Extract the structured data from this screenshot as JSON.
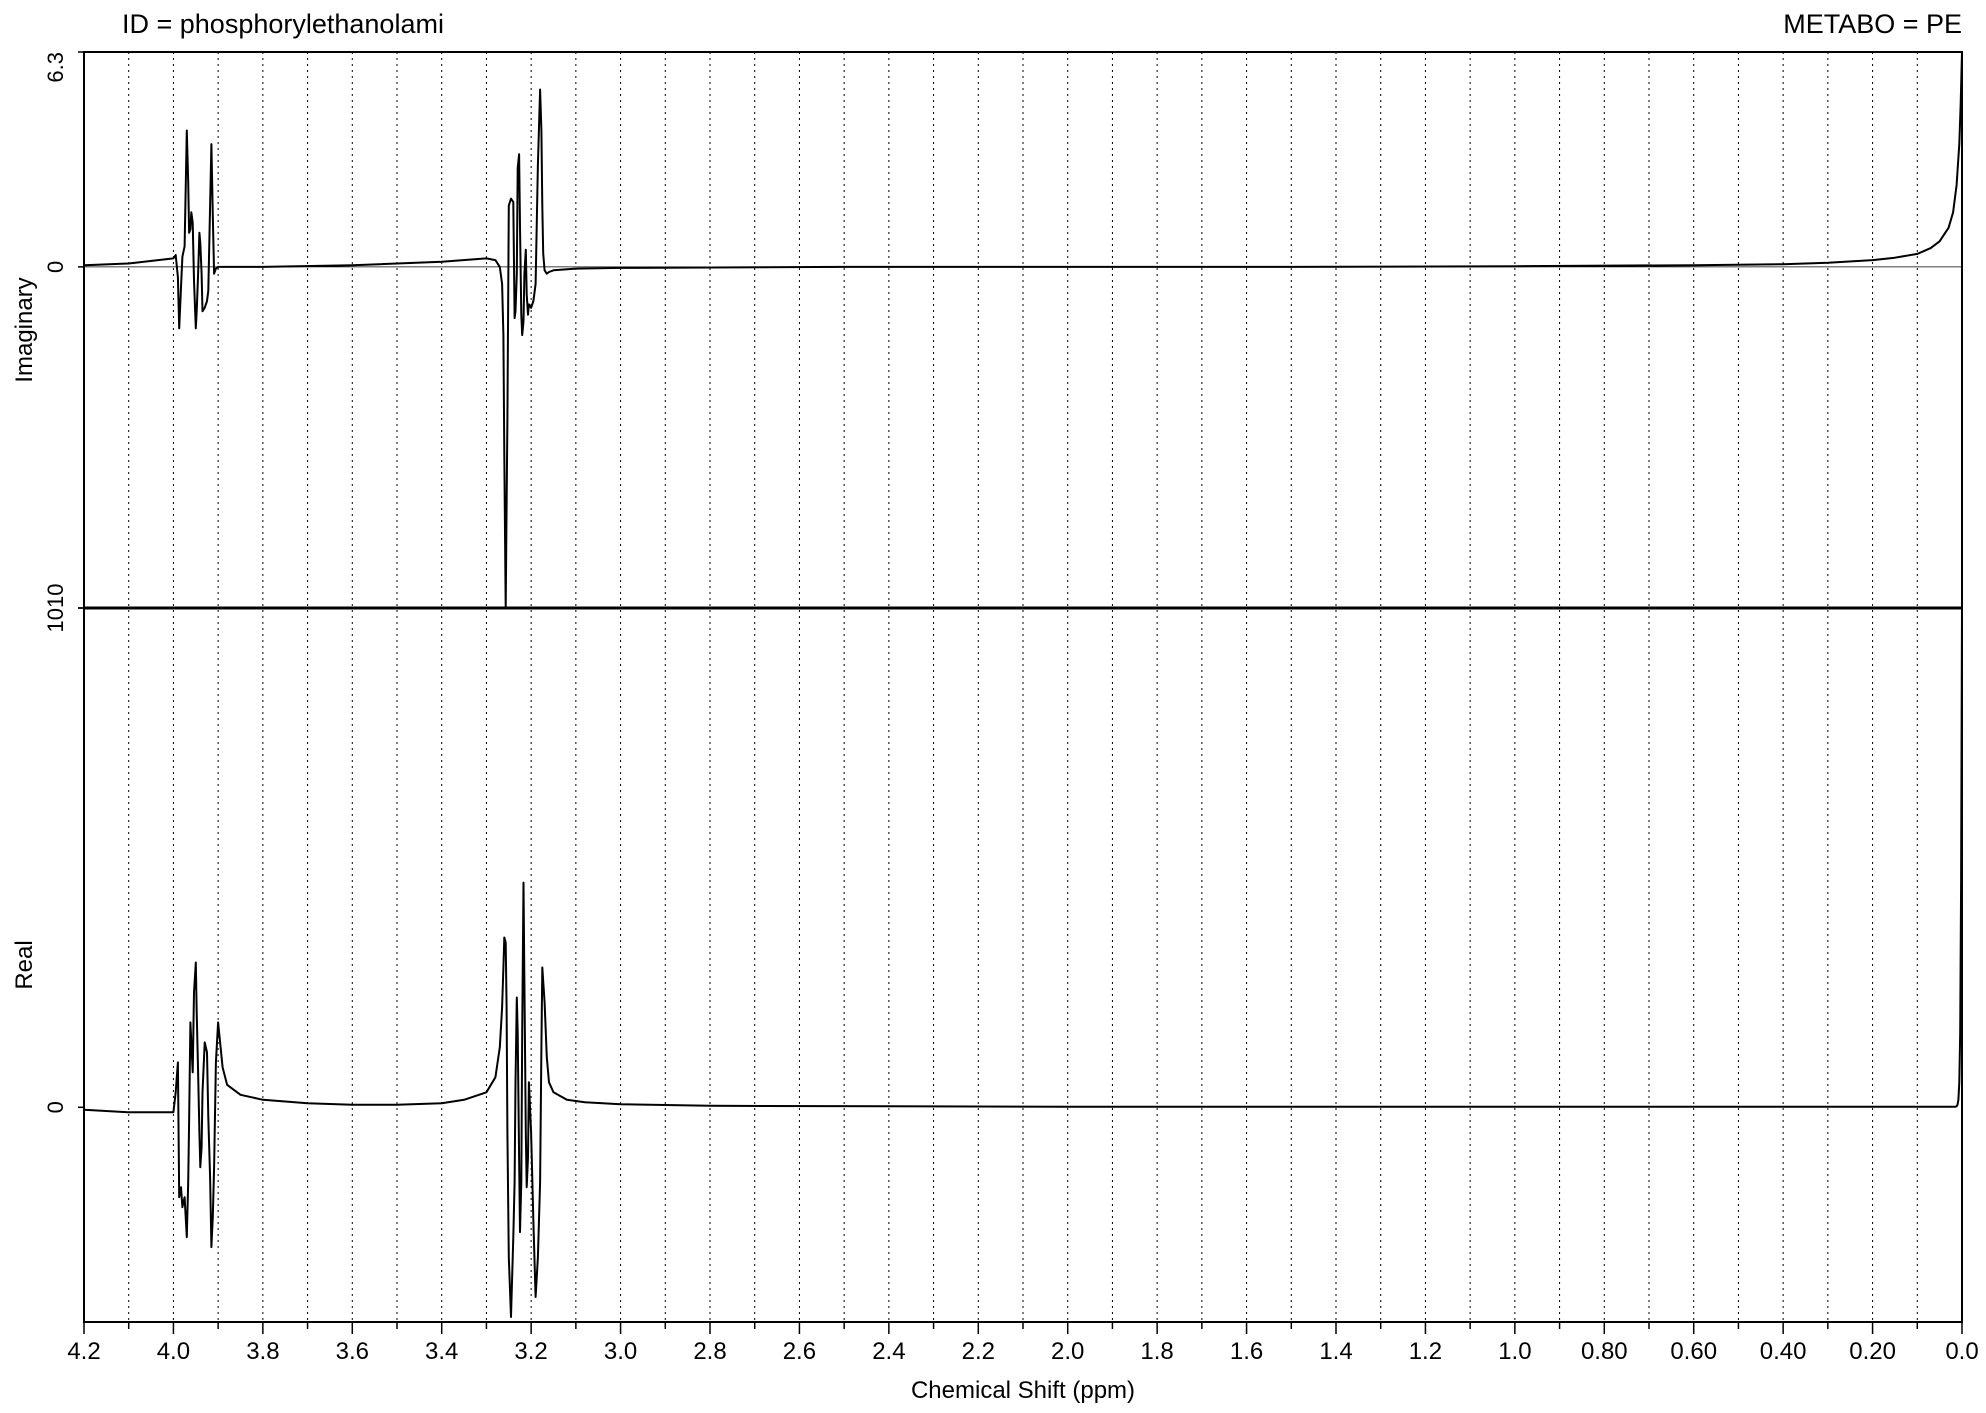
{
  "header": {
    "left_text": "ID = phosphorylethanolami",
    "right_text": "METABO = PE"
  },
  "chart_data": {
    "type": "line",
    "xlabel": "Chemical Shift (ppm)",
    "xlim": [
      4.2,
      0.0
    ],
    "x_reversed": true,
    "x_ticks": [
      "4.2",
      "4.0",
      "3.8",
      "3.6",
      "3.4",
      "3.2",
      "3.0",
      "2.8",
      "2.6",
      "2.4",
      "2.2",
      "2.0",
      "1.8",
      "1.6",
      "1.4",
      "1.2",
      "1.0",
      "0.80",
      "0.60",
      "0.40",
      "0.20",
      "0.0"
    ],
    "x_tick_values": [
      4.2,
      4.0,
      3.8,
      3.6,
      3.4,
      3.2,
      3.0,
      2.8,
      2.6,
      2.4,
      2.2,
      2.0,
      1.8,
      1.6,
      1.4,
      1.2,
      1.0,
      0.8,
      0.6,
      0.4,
      0.2,
      0.0
    ],
    "grid": "vertical dotted every 0.1 ppm",
    "panels": [
      {
        "name": "imaginary",
        "ylabel": "Imaginary",
        "ylim": [
          -10,
          6.3
        ],
        "y_ticks": [
          "10",
          "0",
          "6.3"
        ],
        "y_tick_values": [
          -10,
          0,
          6.3
        ],
        "zero_line": true,
        "series": [
          {
            "x": [
              4.2,
              4.1,
              4.0,
              3.995,
              3.99,
              3.987,
              3.983,
              3.98,
              3.975,
              3.97,
              3.967,
              3.965,
              3.962,
              3.96,
              3.957,
              3.954,
              3.95,
              3.948,
              3.945,
              3.942,
              3.94,
              3.937,
              3.935,
              3.93,
              3.925,
              3.922,
              3.918,
              3.915,
              3.912,
              3.909,
              3.905,
              3.9,
              3.895,
              3.8,
              3.6,
              3.4,
              3.3,
              3.28,
              3.27,
              3.265,
              3.262,
              3.26,
              3.257,
              3.255,
              3.253,
              3.25,
              3.245,
              3.24,
              3.237,
              3.235,
              3.232,
              3.23,
              3.227,
              3.225,
              3.222,
              3.22,
              3.217,
              3.215,
              3.212,
              3.21,
              3.207,
              3.205,
              3.2,
              3.195,
              3.19,
              3.185,
              3.18,
              3.177,
              3.175,
              3.173,
              3.17,
              3.165,
              3.16,
              3.15,
              3.1,
              3.0,
              2.5,
              2.0,
              1.5,
              1.0,
              0.6,
              0.4,
              0.3,
              0.2,
              0.15,
              0.1,
              0.07,
              0.05,
              0.03,
              0.02,
              0.012,
              0.006,
              0.003,
              0.0
            ],
            "y": [
              0.05,
              0.1,
              0.25,
              0.35,
              -0.3,
              -1.8,
              -0.6,
              0.3,
              0.6,
              4.0,
              2.5,
              1.0,
              1.1,
              1.6,
              1.3,
              -0.4,
              -1.8,
              -1.3,
              -0.3,
              1.0,
              0.7,
              -0.2,
              -1.3,
              -1.2,
              -1.0,
              -0.7,
              1.8,
              3.6,
              1.5,
              -0.2,
              -0.05,
              0.0,
              0.0,
              0.0,
              0.05,
              0.15,
              0.25,
              0.2,
              0.0,
              -0.5,
              -2.0,
              -5.5,
              -10.0,
              -7.0,
              -4.5,
              1.8,
              2.0,
              1.9,
              -1.5,
              -1.3,
              -0.2,
              2.9,
              3.3,
              1.2,
              -1.4,
              -2.0,
              -1.6,
              -0.2,
              0.5,
              -0.8,
              -1.4,
              -1.1,
              -1.2,
              -1.0,
              -0.5,
              3.0,
              5.2,
              4.0,
              1.8,
              0.4,
              -0.1,
              -0.2,
              -0.15,
              -0.1,
              -0.05,
              -0.03,
              0.0,
              0.0,
              0.0,
              0.02,
              0.05,
              0.08,
              0.12,
              0.2,
              0.27,
              0.38,
              0.55,
              0.75,
              1.15,
              1.6,
              2.4,
              3.6,
              4.8,
              6.3
            ]
          }
        ]
      },
      {
        "name": "real",
        "ylabel": "Real",
        "ylim": [
          -4.3,
          10
        ],
        "y_ticks": [
          "0",
          "10"
        ],
        "y_tick_values": [
          0,
          10
        ],
        "series": [
          {
            "x": [
              4.2,
              4.1,
              4.0,
              3.995,
              3.99,
              3.987,
              3.983,
              3.98,
              3.975,
              3.97,
              3.967,
              3.965,
              3.962,
              3.96,
              3.957,
              3.954,
              3.95,
              3.948,
              3.945,
              3.942,
              3.94,
              3.937,
              3.935,
              3.93,
              3.925,
              3.922,
              3.918,
              3.915,
              3.912,
              3.909,
              3.905,
              3.9,
              3.89,
              3.88,
              3.85,
              3.8,
              3.7,
              3.6,
              3.5,
              3.4,
              3.35,
              3.3,
              3.28,
              3.27,
              3.265,
              3.262,
              3.26,
              3.257,
              3.255,
              3.253,
              3.25,
              3.245,
              3.24,
              3.237,
              3.235,
              3.232,
              3.23,
              3.227,
              3.225,
              3.222,
              3.22,
              3.217,
              3.215,
              3.212,
              3.21,
              3.207,
              3.205,
              3.2,
              3.195,
              3.19,
              3.185,
              3.18,
              3.177,
              3.175,
              3.17,
              3.165,
              3.16,
              3.15,
              3.12,
              3.08,
              3.0,
              2.8,
              2.4,
              2.0,
              1.5,
              1.0,
              0.5,
              0.2,
              0.1,
              0.05,
              0.03,
              0.02,
              0.015,
              0.012,
              0.01,
              0.008,
              0.006,
              0.004,
              0.002,
              0.0
            ],
            "y": [
              -0.05,
              -0.1,
              -0.1,
              0.3,
              0.9,
              -1.8,
              -1.6,
              -2.0,
              -1.8,
              -2.6,
              -1.5,
              -0.3,
              1.7,
              1.3,
              0.7,
              2.3,
              2.9,
              1.9,
              0.8,
              -0.5,
              -1.2,
              -0.8,
              0.3,
              1.3,
              1.1,
              -0.2,
              -1.4,
              -2.8,
              -2.2,
              -1.2,
              0.9,
              1.7,
              0.8,
              0.45,
              0.25,
              0.15,
              0.08,
              0.05,
              0.05,
              0.08,
              0.15,
              0.3,
              0.6,
              1.2,
              2.0,
              2.8,
              3.4,
              3.3,
              2.0,
              -0.5,
              -3.0,
              -4.2,
              -2.6,
              -1.5,
              0.5,
              2.2,
              1.5,
              -1.0,
              -2.5,
              -1.5,
              1.5,
              4.5,
              2.5,
              -0.5,
              -1.6,
              -1.0,
              0.5,
              -0.5,
              -2.3,
              -3.8,
              -3.0,
              -1.5,
              1.2,
              2.8,
              2.1,
              1.0,
              0.5,
              0.3,
              0.15,
              0.1,
              0.06,
              0.03,
              0.02,
              0.01,
              0.01,
              0.01,
              0.01,
              0.01,
              0.01,
              0.01,
              0.01,
              0.01,
              0.01,
              0.02,
              0.05,
              0.15,
              0.5,
              1.5,
              4.5,
              10.0
            ]
          }
        ]
      }
    ]
  }
}
